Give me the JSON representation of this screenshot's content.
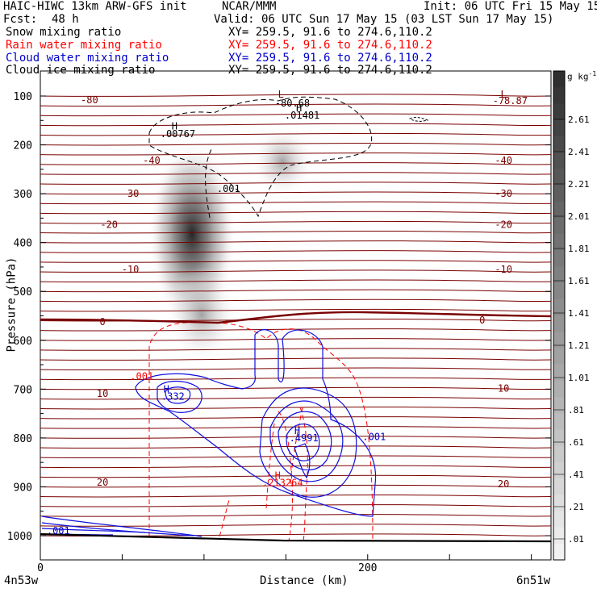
{
  "header": {
    "model": "HAIC-HIWC 13km ARW-GFS init",
    "org": "NCAR/MMM",
    "init": "Init: 06 UTC Fri 15 May 15",
    "fcst_label": "Fcst:",
    "fcst_value": "48 h",
    "valid": "Valid: 06 UTC Sun 17 May 15 (03 LST Sun 17 May 15)",
    "fields": [
      {
        "name": "Snow mixing ratio",
        "xy": "XY= 259.5, 91.6 to 274.6,110.2",
        "color": "#000000"
      },
      {
        "name": "Rain water mixing ratio",
        "xy": "XY= 259.5, 91.6 to 274.6,110.2",
        "color": "#ff0000"
      },
      {
        "name": "Cloud water mixing ratio",
        "xy": "XY= 259.5, 91.6 to 274.6,110.2",
        "color": "#0000cc"
      },
      {
        "name": "Cloud ice mixing ratio",
        "xy": "XY= 259.5, 91.6 to 274.6,110.2",
        "color": "#000000"
      }
    ]
  },
  "chart_data": {
    "type": "cross-section contour",
    "ylabel": "Pressure (hPa)",
    "xlabel": "Distance (km)",
    "x_ticks": [
      "0",
      "200"
    ],
    "xlim": [
      0,
      312
    ],
    "y_ticks": [
      100,
      200,
      300,
      400,
      500,
      600,
      700,
      800,
      900,
      1000
    ],
    "ylim": [
      1050,
      50
    ],
    "x_endpoints": {
      "left": "4n53w",
      "right": "6n51w"
    },
    "colorbar": {
      "unit": "g kg",
      "unit_sup": "-1",
      "labels": [
        "2.61",
        "2.41",
        "2.21",
        "2.01",
        "1.81",
        "1.61",
        "1.41",
        "1.21",
        "1.01",
        ".81",
        ".61",
        ".41",
        ".21",
        ".01"
      ]
    },
    "temperature_contours": {
      "color": "#7a0000",
      "labels": [
        {
          "text": "-80",
          "x": 30,
          "p": 108
        },
        {
          "text": "-78.87",
          "x": 287,
          "p": 110
        },
        {
          "text": "-40",
          "x": 68,
          "p": 232
        },
        {
          "text": "-40",
          "x": 283,
          "p": 232
        },
        {
          "text": "-30",
          "x": 55,
          "p": 300
        },
        {
          "text": "-30",
          "x": 283,
          "p": 300
        },
        {
          "text": "-20",
          "x": 42,
          "p": 363
        },
        {
          "text": "-20",
          "x": 283,
          "p": 363
        },
        {
          "text": "-10",
          "x": 55,
          "p": 455
        },
        {
          "text": "-10",
          "x": 283,
          "p": 455
        },
        {
          "text": "0",
          "x": 38,
          "p": 562
        },
        {
          "text": "0",
          "x": 270,
          "p": 559
        },
        {
          "text": "10",
          "x": 38,
          "p": 709
        },
        {
          "text": "10",
          "x": 283,
          "p": 699
        },
        {
          "text": "20",
          "x": 38,
          "p": 891
        },
        {
          "text": "20",
          "x": 283,
          "p": 894
        }
      ],
      "lows": [
        {
          "text": "L",
          "x": 147,
          "p": 97
        },
        {
          "text": "L",
          "x": 283,
          "p": 97
        }
      ],
      "extrema_values": [
        {
          "text": "-80.68",
          "x": 154,
          "p": 115
        }
      ]
    },
    "snow": {
      "max_labels": [
        {
          "text": "H",
          "x": 82,
          "p": 162
        },
        {
          "text": ".00767",
          "x": 84,
          "p": 178
        }
      ],
      "label": {
        "text": ".001",
        "x": 115,
        "p": 290
      },
      "max2": [
        {
          "text": "H",
          "x": 158,
          "p": 125
        },
        {
          "text": ".01481",
          "x": 160,
          "p": 140
        }
      ]
    },
    "rain": {
      "labels": [
        {
          "text": ".001",
          "x": 62,
          "p": 674
        },
        {
          "text": "H",
          "x": 145,
          "p": 877
        },
        {
          "text": ".213264",
          "x": 148,
          "p": 892
        }
      ]
    },
    "cloud_water": {
      "labels": [
        {
          "text": "H",
          "x": 77,
          "p": 700
        },
        {
          "text": ".332",
          "x": 81,
          "p": 715
        },
        {
          "text": "H",
          "x": 157,
          "p": 785
        },
        {
          "text": ".4991",
          "x": 161,
          "p": 800
        },
        {
          "text": ".001",
          "x": 204,
          "p": 798
        },
        {
          "text": ".001",
          "x": 11,
          "p": 990
        }
      ]
    }
  }
}
